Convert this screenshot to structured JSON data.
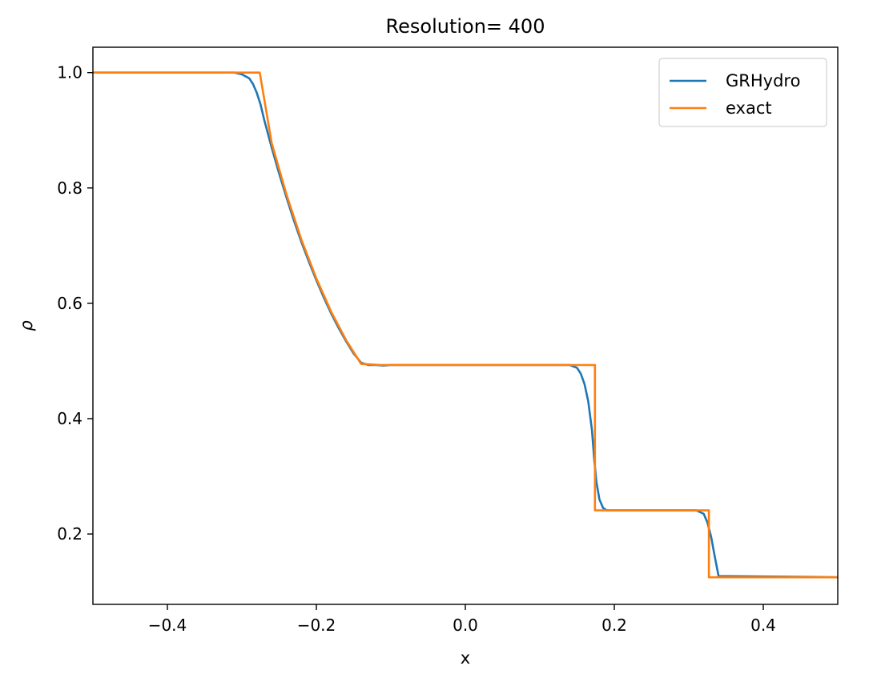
{
  "chart_data": {
    "type": "line",
    "title": "Resolution= 400",
    "xlabel": "x",
    "ylabel": "ρ",
    "xlim": [
      -0.5,
      0.5
    ],
    "ylim": [
      0.078,
      1.044
    ],
    "xticks": [
      -0.4,
      -0.2,
      0.0,
      0.2,
      0.4
    ],
    "xtick_labels": [
      "−0.4",
      "−0.2",
      "0.0",
      "0.2",
      "0.4"
    ],
    "yticks": [
      0.2,
      0.4,
      0.6,
      0.8,
      1.0
    ],
    "ytick_labels": [
      "0.2",
      "0.4",
      "0.6",
      "0.8",
      "1.0"
    ],
    "grid": false,
    "legend_position": "top-right",
    "series": [
      {
        "name": "GRHydro",
        "color": "#1f77b4",
        "x": [
          -0.5,
          -0.31,
          -0.3,
          -0.29,
          -0.285,
          -0.28,
          -0.275,
          -0.27,
          -0.26,
          -0.25,
          -0.24,
          -0.23,
          -0.22,
          -0.21,
          -0.2,
          -0.19,
          -0.18,
          -0.17,
          -0.16,
          -0.15,
          -0.14,
          -0.13,
          -0.12,
          -0.11,
          -0.1,
          -0.09,
          -0.08,
          0.14,
          0.15,
          0.155,
          0.16,
          0.165,
          0.17,
          0.173,
          0.176,
          0.18,
          0.185,
          0.19,
          0.2,
          0.31,
          0.32,
          0.325,
          0.33,
          0.335,
          0.34,
          0.5
        ],
        "y": [
          1.0,
          1.0,
          0.997,
          0.99,
          0.98,
          0.965,
          0.945,
          0.918,
          0.87,
          0.825,
          0.783,
          0.743,
          0.706,
          0.672,
          0.64,
          0.61,
          0.582,
          0.557,
          0.534,
          0.513,
          0.497,
          0.493,
          0.493,
          0.492,
          0.493,
          0.493,
          0.493,
          0.493,
          0.488,
          0.478,
          0.46,
          0.43,
          0.38,
          0.33,
          0.29,
          0.26,
          0.245,
          0.241,
          0.241,
          0.241,
          0.235,
          0.22,
          0.195,
          0.16,
          0.127,
          0.125
        ]
      },
      {
        "name": "exact",
        "color": "#ff7f0e",
        "x": [
          -0.5,
          -0.276,
          -0.26,
          -0.24,
          -0.22,
          -0.2,
          -0.18,
          -0.16,
          -0.14,
          -0.113,
          0.174,
          0.174,
          0.327,
          0.327,
          0.5
        ],
        "y": [
          1.0,
          1.0,
          0.878,
          0.788,
          0.71,
          0.643,
          0.585,
          0.536,
          0.495,
          0.493,
          0.493,
          0.241,
          0.241,
          0.125,
          0.125
        ]
      }
    ]
  }
}
